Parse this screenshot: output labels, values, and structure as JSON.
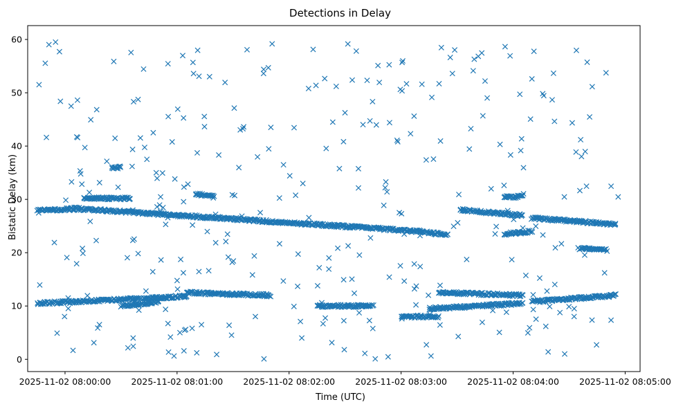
{
  "chart_data": {
    "type": "scatter",
    "title": "Detections in Delay",
    "xlabel": "Time (UTC)",
    "ylabel": "Bistatic Delay (km)",
    "x_start": "2025-11-02 07:59:45",
    "x_end": "2025-11-02 08:04:57",
    "xlim": [
      "2025-11-02 07:59:40",
      "2025-11-02 08:05:08"
    ],
    "ylim": [
      -2.3,
      62.6
    ],
    "x_ticks": [
      "2025-11-02 08:00:00",
      "2025-11-02 08:01:00",
      "2025-11-02 08:02:00",
      "2025-11-02 08:03:00",
      "2025-11-02 08:04:00",
      "2025-11-02 08:05:00"
    ],
    "y_ticks": [
      0,
      10,
      20,
      30,
      40,
      50,
      60
    ],
    "marker": "x",
    "color": "#1f77b4",
    "grid": false,
    "tracks": [
      {
        "x_range": [
          "2025-11-02 07:59:45",
          "2025-11-02 08:00:05"
        ],
        "y": [
          27.9,
          28.2
        ]
      },
      {
        "x_range": [
          "2025-11-02 08:00:05",
          "2025-11-02 08:03:10"
        ],
        "y": [
          28.3,
          24.0
        ]
      },
      {
        "x_range": [
          "2025-11-02 08:03:10",
          "2025-11-02 08:03:25"
        ],
        "y": [
          24.0,
          23.3
        ]
      },
      {
        "x_range": [
          "2025-11-02 08:03:32",
          "2025-11-02 08:04:05"
        ],
        "y": [
          28.0,
          27.0
        ]
      },
      {
        "x_range": [
          "2025-11-02 08:04:10",
          "2025-11-02 08:04:55"
        ],
        "y": [
          26.5,
          25.3
        ]
      },
      {
        "x_range": [
          "2025-11-02 07:59:45",
          "2025-11-02 08:01:05"
        ],
        "y": [
          10.5,
          11.8
        ]
      },
      {
        "x_range": [
          "2025-11-02 08:00:30",
          "2025-11-02 08:00:50"
        ],
        "y": [
          10.0,
          10.8
        ]
      },
      {
        "x_range": [
          "2025-11-02 08:01:05",
          "2025-11-02 08:01:50"
        ],
        "y": [
          12.5,
          12.0
        ]
      },
      {
        "x_range": [
          "2025-11-02 08:02:15",
          "2025-11-02 08:02:45"
        ],
        "y": [
          10.0,
          10.0
        ]
      },
      {
        "x_range": [
          "2025-11-02 08:03:00",
          "2025-11-02 08:03:20"
        ],
        "y": [
          8.0,
          8.0
        ]
      },
      {
        "x_range": [
          "2025-11-02 08:03:15",
          "2025-11-02 08:04:05"
        ],
        "y": [
          9.5,
          10.5
        ]
      },
      {
        "x_range": [
          "2025-11-02 08:03:20",
          "2025-11-02 08:04:05"
        ],
        "y": [
          12.5,
          12.0
        ]
      },
      {
        "x_range": [
          "2025-11-02 08:04:10",
          "2025-11-02 08:04:55"
        ],
        "y": [
          10.8,
          12.0
        ]
      },
      {
        "x_range": [
          "2025-11-02 08:00:10",
          "2025-11-02 08:00:35"
        ],
        "y": [
          30.2,
          30.2
        ]
      },
      {
        "x_range": [
          "2025-11-02 08:01:10",
          "2025-11-02 08:01:20"
        ],
        "y": [
          31.0,
          30.5
        ]
      },
      {
        "x_range": [
          "2025-11-02 08:03:55",
          "2025-11-02 08:04:05"
        ],
        "y": [
          30.5,
          30.5
        ]
      },
      {
        "x_range": [
          "2025-11-02 08:03:55",
          "2025-11-02 08:04:10"
        ],
        "y": [
          23.5,
          24.0
        ]
      },
      {
        "x_range": [
          "2025-11-02 08:04:35",
          "2025-11-02 08:04:50"
        ],
        "y": [
          20.8,
          20.5
        ]
      },
      {
        "x_range": [
          "2025-11-02 08:00:25",
          "2025-11-02 08:00:30"
        ],
        "y": [
          36.0,
          36.0
        ]
      }
    ],
    "clutter_points": 340,
    "clutter_y_range": [
      0,
      60
    ]
  }
}
